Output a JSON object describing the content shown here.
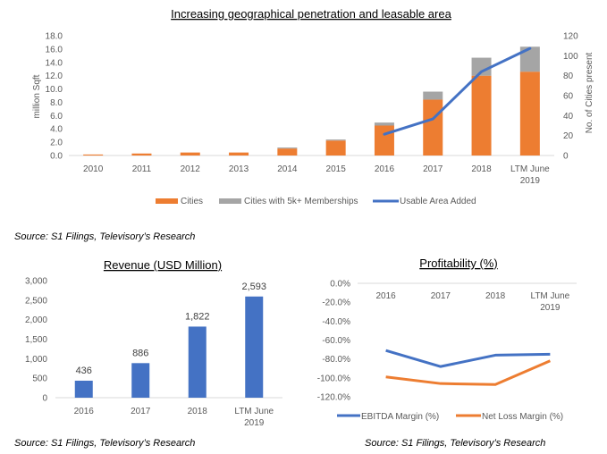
{
  "chart_data": [
    {
      "id": "top",
      "type": "bar",
      "subtype": "stacked-bar-with-line",
      "title": "Increasing geographical penetration and leasable area",
      "categories": [
        "2010",
        "2011",
        "2012",
        "2013",
        "2014",
        "2015",
        "2016",
        "2017",
        "2018",
        "LTM June 2019"
      ],
      "category_lines": [
        [
          "2010"
        ],
        [
          "2011"
        ],
        [
          "2012"
        ],
        [
          "2013"
        ],
        [
          "2014"
        ],
        [
          "2015"
        ],
        [
          "2016"
        ],
        [
          "2017"
        ],
        [
          "2018"
        ],
        [
          "LTM June",
          "2019"
        ]
      ],
      "series": [
        {
          "name": "Cities",
          "type": "bar",
          "axis": "right",
          "color": "#ED7D31",
          "values": [
            1,
            2,
            3,
            3,
            7,
            15,
            30,
            56,
            80,
            84
          ]
        },
        {
          "name": "Cities with 5k+ Memberships",
          "type": "bar",
          "axis": "right",
          "color": "#A5A5A5",
          "values": [
            0,
            0,
            0,
            0,
            1,
            1,
            3,
            8,
            18,
            25
          ]
        },
        {
          "name": "Usable Area Added",
          "type": "line",
          "axis": "left",
          "color": "#4472C4",
          "values": [
            null,
            null,
            null,
            null,
            null,
            null,
            3.2,
            5.5,
            12.6,
            16.1
          ]
        }
      ],
      "ylabel": "million Sqft",
      "ylabel_right": "No. of Cities  present",
      "ylim": [
        0,
        18
      ],
      "yticks": [
        "0.0",
        "2.0",
        "4.0",
        "6.0",
        "8.0",
        "10.0",
        "12.0",
        "14.0",
        "16.0",
        "18.0"
      ],
      "ylim_right": [
        0,
        120
      ],
      "yticks_right": [
        "0",
        "20",
        "40",
        "60",
        "80",
        "100",
        "120"
      ],
      "grid": false,
      "legend": "bottom"
    },
    {
      "id": "revenue",
      "type": "bar",
      "title": "Revenue (USD Million)",
      "categories": [
        "2016",
        "2017",
        "2018",
        "LTM June 2019"
      ],
      "category_lines": [
        [
          "2016"
        ],
        [
          "2017"
        ],
        [
          "2018"
        ],
        [
          "LTM June",
          "2019"
        ]
      ],
      "values": [
        436,
        886,
        1822,
        2593
      ],
      "data_labels": [
        "436",
        "886",
        "1,822",
        "2,593"
      ],
      "color": "#4472C4",
      "ylim": [
        0,
        3000
      ],
      "yticks": [
        "0",
        "500",
        "1,000",
        "1,500",
        "2,000",
        "2,500",
        "3,000"
      ],
      "xlabel": "",
      "ylabel": "",
      "grid": false
    },
    {
      "id": "profitability",
      "type": "line",
      "title": "Profitability (%)",
      "categories": [
        "2016",
        "2017",
        "2018",
        "LTM June 2019"
      ],
      "category_lines": [
        [
          "2016"
        ],
        [
          "2017"
        ],
        [
          "2018"
        ],
        [
          "LTM June",
          "2019"
        ]
      ],
      "series": [
        {
          "name": "EBITDA Margin (%)",
          "color": "#4472C4",
          "values": [
            -71,
            -88,
            -76,
            -75
          ]
        },
        {
          "name": "Net Loss Margin (%)",
          "color": "#ED7D31",
          "values": [
            -99,
            -106,
            -107,
            -82
          ]
        }
      ],
      "ylim": [
        -120,
        0
      ],
      "yticks": [
        "0.0%",
        "-20.0%",
        "-40.0%",
        "-60.0%",
        "-80.0%",
        "-100.0%",
        "-120.0%"
      ],
      "xlabel": "",
      "ylabel": "",
      "grid": false,
      "legend": "bottom"
    }
  ],
  "sources": {
    "top": "Source: S1 Filings, Televisory’s Research",
    "revenue": "Source: S1 Filings, Televisory’s Research",
    "profitability": "Source: S1 Filings, Televisory’s Research"
  }
}
